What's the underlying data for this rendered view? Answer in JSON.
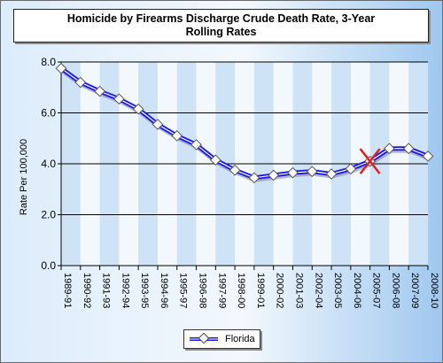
{
  "chart_data": {
    "type": "line",
    "title": "Homicide by Firearms Discharge Crude Death Rate, 3-Year Rolling Rates",
    "ylabel": "Rate Per 100,000",
    "xlabel": "",
    "categories": [
      "1989-91",
      "1990-92",
      "1991-93",
      "1992-94",
      "1993-95",
      "1994-96",
      "1995-97",
      "1996-98",
      "1997-99",
      "1998-00",
      "1999-01",
      "2000-02",
      "2001-03",
      "2002-04",
      "2003-05",
      "2004-06",
      "2005-07",
      "2006-08",
      "2007-09",
      "2008-10"
    ],
    "series": [
      {
        "name": "Florida",
        "values": [
          7.75,
          7.2,
          6.85,
          6.55,
          6.15,
          5.55,
          5.1,
          4.75,
          4.15,
          3.75,
          3.45,
          3.55,
          3.65,
          3.7,
          3.6,
          3.8,
          4.1,
          4.6,
          4.6,
          4.3
        ]
      }
    ],
    "ylim": [
      0,
      8
    ],
    "yticks": [
      "0.0",
      "2.0",
      "4.0",
      "6.0",
      "8.0"
    ],
    "grid": true,
    "legend": "bottom",
    "marker_x_category": "2005-07",
    "colors": {
      "line": "#1a1aee",
      "marker": "#ffffff",
      "cross": "#e02020",
      "band": "#ffffff"
    }
  }
}
